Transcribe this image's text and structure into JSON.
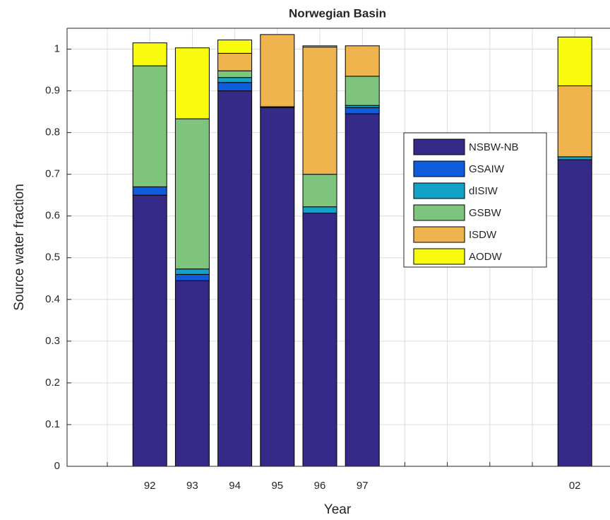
{
  "chart_data": {
    "type": "stacked_bar",
    "title": "Norwegian Basin",
    "x_label": "Year",
    "y_label": "Source water fraction",
    "categories": [
      null,
      "92",
      "93",
      "94",
      "95",
      "96",
      "97",
      null,
      null,
      null,
      null,
      "02"
    ],
    "series": [
      {
        "name": "NSBW-NB",
        "color": "#352a87",
        "values": [
          null,
          0.65,
          0.445,
          0.9,
          0.86,
          0.607,
          0.845,
          null,
          null,
          null,
          null,
          0.735
        ]
      },
      {
        "name": "GSAIW",
        "color": "#0f5cdd",
        "values": [
          null,
          0.02,
          0.015,
          0.02,
          0,
          0,
          0.015,
          null,
          null,
          null,
          null,
          0
        ]
      },
      {
        "name": "dISIW",
        "color": "#12a2c8",
        "values": [
          null,
          0,
          0.013,
          0.012,
          0.002,
          0.015,
          0.005,
          null,
          null,
          null,
          null,
          0.007
        ]
      },
      {
        "name": "GSBW",
        "color": "#7fc47d",
        "values": [
          null,
          0.29,
          0.36,
          0.016,
          0,
          0.078,
          0.07,
          null,
          null,
          null,
          null,
          0
        ]
      },
      {
        "name": "ISDW",
        "color": "#f0b44f",
        "values": [
          null,
          0,
          0,
          0.042,
          0.173,
          0.305,
          0.073,
          null,
          null,
          null,
          null,
          0.17
        ]
      },
      {
        "name": "AODW",
        "color": "#f9fb0e",
        "values": [
          null,
          0.055,
          0.17,
          0.032,
          0,
          0.003,
          0,
          null,
          null,
          null,
          null,
          0.117
        ]
      }
    ],
    "ylim": [
      0,
      1.05
    ],
    "yticks": [
      0,
      0.1,
      0.2,
      0.3,
      0.4,
      0.5,
      0.6,
      0.7,
      0.8,
      0.9,
      1
    ],
    "grid": true
  }
}
